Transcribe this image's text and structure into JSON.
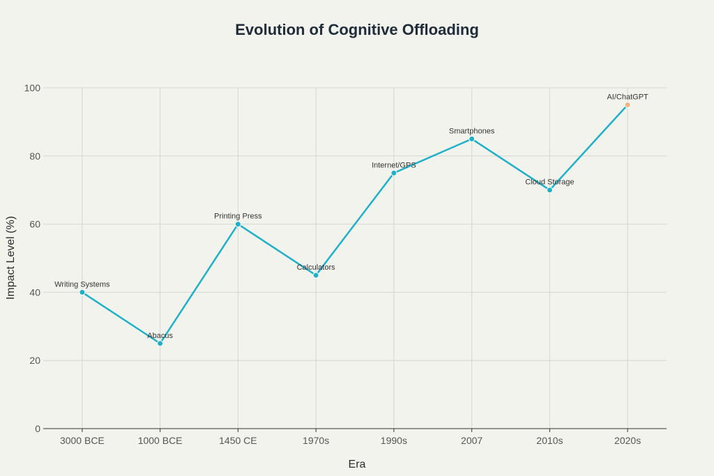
{
  "chart_data": {
    "type": "line",
    "title": "Evolution of Cognitive Offloading",
    "xlabel": "Era",
    "ylabel": "Impact Level (%)",
    "ylim": [
      0,
      100
    ],
    "yticks": [
      0,
      20,
      40,
      60,
      80,
      100
    ],
    "grid": true,
    "categories": [
      "3000 BCE",
      "1000 BCE",
      "1450 CE",
      "1970s",
      "1990s",
      "2007",
      "2010s",
      "2020s"
    ],
    "series": [
      {
        "name": "Impact Level",
        "values": [
          40,
          25,
          60,
          45,
          75,
          85,
          70,
          95
        ],
        "point_labels": [
          "Writing Systems",
          "Abacus",
          "Printing Press",
          "Calculators",
          "Internet/GPS",
          "Smartphones",
          "Cloud Storage",
          "AI/ChatGPT"
        ],
        "color": "#1fb0c9",
        "highlight_color": "#f5b27a"
      }
    ]
  }
}
